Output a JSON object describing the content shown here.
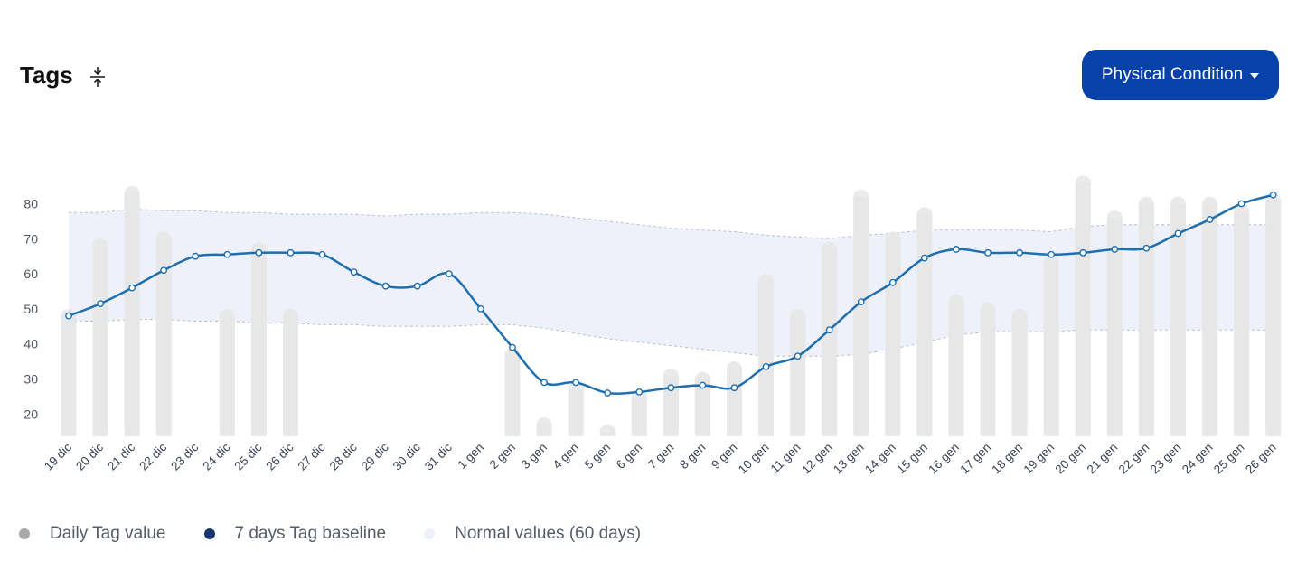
{
  "header": {
    "title": "Tags",
    "collapse_icon": "collapse-vertical-icon"
  },
  "dropdown": {
    "label": "Physical Condition"
  },
  "colors": {
    "bar": "#e6e6e6",
    "line": "#1f6fae",
    "band": "#eef1f9",
    "band_edge": "#b9bec6",
    "button": "#0842a8"
  },
  "legend": [
    {
      "label": "Daily Tag value",
      "color": "#a9a9a9"
    },
    {
      "label": "7 days Tag baseline",
      "color": "#1b3470"
    },
    {
      "label": "Normal values (60 days)",
      "color": "#edf1fa"
    }
  ],
  "chart_data": {
    "type": "bar",
    "title": "",
    "xlabel": "",
    "ylabel": "",
    "ylim": [
      13,
      92
    ],
    "yticks": [
      20,
      30,
      40,
      50,
      60,
      70,
      80
    ],
    "grid": false,
    "legend_position": "bottom-left",
    "categories": [
      "19 dic",
      "20 dic",
      "21 dic",
      "22 dic",
      "23 dic",
      "24 dic",
      "25 dic",
      "26 dic",
      "27 dic",
      "28 dic",
      "29 dic",
      "30 dic",
      "31 dic",
      "1 gen",
      "2 gen",
      "3 gen",
      "4 gen",
      "5 gen",
      "6 gen",
      "7 gen",
      "8 gen",
      "9 gen",
      "10 gen",
      "11 gen",
      "12 gen",
      "13 gen",
      "14 gen",
      "15 gen",
      "16 gen",
      "17 gen",
      "18 gen",
      "19 gen",
      "20 gen",
      "21 gen",
      "22 gen",
      "23 gen",
      "24 gen",
      "25 gen",
      "26 gen"
    ],
    "series": [
      {
        "name": "Daily Tag value",
        "type": "bar",
        "values": [
          50,
          70,
          85,
          72,
          null,
          50,
          69,
          50,
          null,
          null,
          null,
          null,
          null,
          null,
          39,
          19,
          29,
          17,
          27,
          33,
          32,
          35,
          60,
          50,
          69,
          84,
          72,
          79,
          54,
          52,
          50,
          65,
          88,
          78,
          82,
          82,
          82,
          80,
          83
        ]
      },
      {
        "name": "7 days Tag baseline",
        "type": "line",
        "values": [
          48,
          51.5,
          56,
          61,
          65,
          65.5,
          66,
          66,
          65.5,
          60.5,
          56.5,
          56.5,
          60,
          50,
          39,
          29,
          29,
          26,
          26.3,
          27.5,
          28.2,
          27.5,
          33.5,
          36.5,
          44,
          52,
          57.5,
          64.5,
          67,
          66,
          66,
          65.5,
          66,
          67,
          67.3,
          71.5,
          75.5,
          80,
          82.5
        ]
      },
      {
        "name": "Normal values (60 days)",
        "type": "area",
        "upper": [
          77.5,
          77.5,
          78.5,
          78,
          78,
          77.5,
          77.5,
          77,
          77,
          77,
          76.5,
          77,
          77,
          77.5,
          77.5,
          77,
          76,
          75,
          74,
          73,
          72.5,
          72,
          71,
          70.5,
          70,
          71,
          71.5,
          72.5,
          72.5,
          72.5,
          72.5,
          72,
          73.5,
          74,
          74,
          74,
          74,
          74,
          74
        ],
        "lower": [
          46.5,
          46.5,
          47,
          47,
          46.5,
          46.5,
          46,
          46,
          45.5,
          45.5,
          45,
          45,
          45,
          45.5,
          45.5,
          44.5,
          43,
          41.5,
          40.5,
          39.5,
          38.5,
          37.5,
          36.5,
          36.5,
          36.5,
          37,
          38.5,
          40.5,
          42.5,
          43.5,
          43.5,
          43.5,
          44,
          44,
          44,
          44,
          44,
          44,
          44
        ]
      }
    ]
  }
}
